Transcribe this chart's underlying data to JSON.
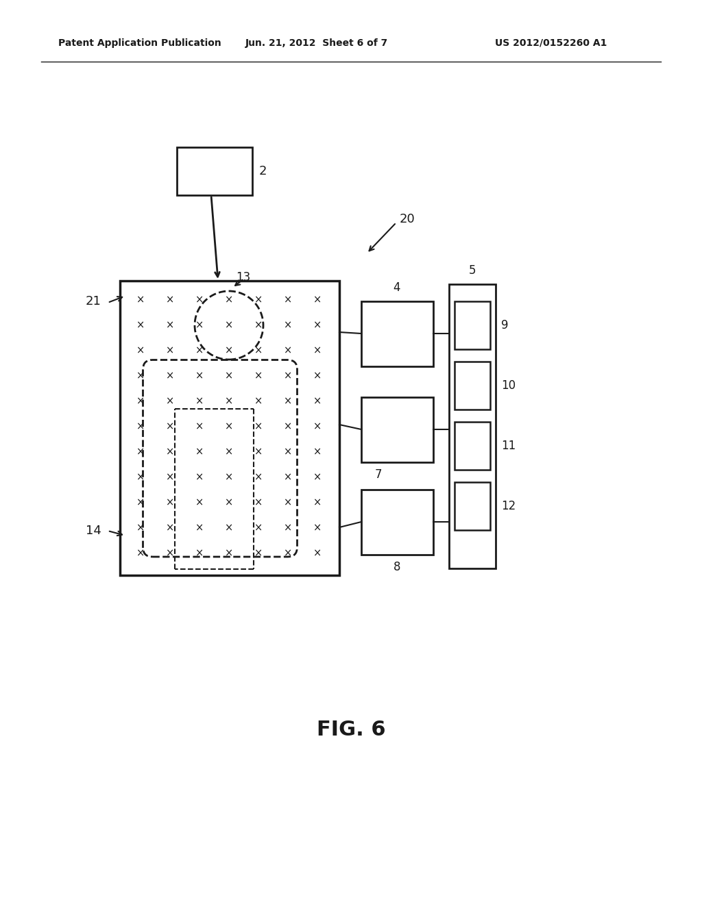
{
  "title_left": "Patent Application Publication",
  "title_mid": "Jun. 21, 2012  Sheet 6 of 7",
  "title_right": "US 2012/0152260 A1",
  "fig_label": "FIG. 6",
  "background": "#ffffff",
  "line_color": "#1a1a1a",
  "label_2": "2",
  "label_20": "20",
  "label_21": "21",
  "label_13": "13",
  "label_14": "14",
  "label_4": "4",
  "label_5": "5",
  "label_7": "7",
  "label_8": "8",
  "label_9": "9",
  "label_10": "10",
  "label_11": "11",
  "label_12": "12"
}
